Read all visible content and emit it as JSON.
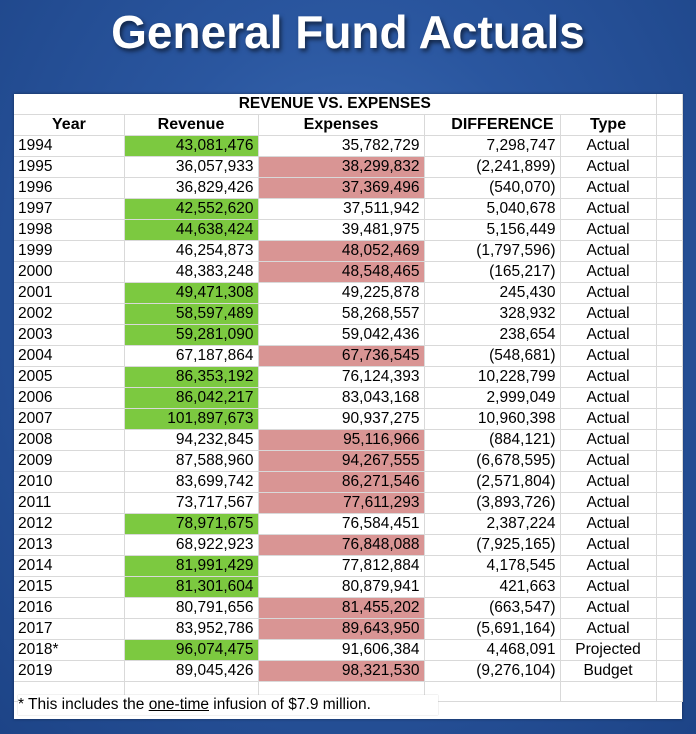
{
  "title": "General Fund Actuals",
  "table": {
    "caption": "REVENUE VS. EXPENSES",
    "headers": {
      "year": "Year",
      "revenue": "Revenue",
      "expenses": "Expenses",
      "difference": "DIFFERENCE",
      "type": "Type"
    },
    "rows": [
      {
        "year": "1994",
        "revenue": "43,081,476",
        "expenses": "35,782,729",
        "difference": "7,298,747",
        "type": "Actual"
      },
      {
        "year": "1995",
        "revenue": "36,057,933",
        "expenses": "38,299,832",
        "difference": "(2,241,899)",
        "type": "Actual"
      },
      {
        "year": "1996",
        "revenue": "36,829,426",
        "expenses": "37,369,496",
        "difference": "(540,070)",
        "type": "Actual"
      },
      {
        "year": "1997",
        "revenue": "42,552,620",
        "expenses": "37,511,942",
        "difference": "5,040,678",
        "type": "Actual"
      },
      {
        "year": "1998",
        "revenue": "44,638,424",
        "expenses": "39,481,975",
        "difference": "5,156,449",
        "type": "Actual"
      },
      {
        "year": "1999",
        "revenue": "46,254,873",
        "expenses": "48,052,469",
        "difference": "(1,797,596)",
        "type": "Actual"
      },
      {
        "year": "2000",
        "revenue": "48,383,248",
        "expenses": "48,548,465",
        "difference": "(165,217)",
        "type": "Actual"
      },
      {
        "year": "2001",
        "revenue": "49,471,308",
        "expenses": "49,225,878",
        "difference": "245,430",
        "type": "Actual"
      },
      {
        "year": "2002",
        "revenue": "58,597,489",
        "expenses": "58,268,557",
        "difference": "328,932",
        "type": "Actual"
      },
      {
        "year": "2003",
        "revenue": "59,281,090",
        "expenses": "59,042,436",
        "difference": "238,654",
        "type": "Actual"
      },
      {
        "year": "2004",
        "revenue": "67,187,864",
        "expenses": "67,736,545",
        "difference": "(548,681)",
        "type": "Actual"
      },
      {
        "year": "2005",
        "revenue": "86,353,192",
        "expenses": "76,124,393",
        "difference": "10,228,799",
        "type": "Actual"
      },
      {
        "year": "2006",
        "revenue": "86,042,217",
        "expenses": "83,043,168",
        "difference": "2,999,049",
        "type": "Actual"
      },
      {
        "year": "2007",
        "revenue": "101,897,673",
        "expenses": "90,937,275",
        "difference": "10,960,398",
        "type": "Actual"
      },
      {
        "year": "2008",
        "revenue": "94,232,845",
        "expenses": "95,116,966",
        "difference": "(884,121)",
        "type": "Actual"
      },
      {
        "year": "2009",
        "revenue": "87,588,960",
        "expenses": "94,267,555",
        "difference": "(6,678,595)",
        "type": "Actual"
      },
      {
        "year": "2010",
        "revenue": "83,699,742",
        "expenses": "86,271,546",
        "difference": "(2,571,804)",
        "type": "Actual"
      },
      {
        "year": "2011",
        "revenue": "73,717,567",
        "expenses": "77,611,293",
        "difference": "(3,893,726)",
        "type": "Actual"
      },
      {
        "year": "2012",
        "revenue": "78,971,675",
        "expenses": "76,584,451",
        "difference": "2,387,224",
        "type": "Actual"
      },
      {
        "year": "2013",
        "revenue": "68,922,923",
        "expenses": "76,848,088",
        "difference": "(7,925,165)",
        "type": "Actual"
      },
      {
        "year": "2014",
        "revenue": "81,991,429",
        "expenses": "77,812,884",
        "difference": "4,178,545",
        "type": "Actual"
      },
      {
        "year": "2015",
        "revenue": "81,301,604",
        "expenses": "80,879,941",
        "difference": "421,663",
        "type": "Actual"
      },
      {
        "year": "2016",
        "revenue": "80,791,656",
        "expenses": "81,455,202",
        "difference": "(663,547)",
        "type": "Actual"
      },
      {
        "year": "2017",
        "revenue": "83,952,786",
        "expenses": "89,643,950",
        "difference": "(5,691,164)",
        "type": "Actual"
      },
      {
        "year": "2018*",
        "revenue": "96,074,475",
        "expenses": "91,606,384",
        "difference": "4,468,091",
        "type": "Projected"
      },
      {
        "year": "2019",
        "revenue": "89,045,426",
        "expenses": "98,321,530",
        "difference": "(9,276,104)",
        "type": "Budget"
      }
    ]
  },
  "footnote": {
    "prefix": "* This includes the ",
    "underlined": "one-time",
    "suffix": " infusion of $7.9 million."
  },
  "colors": {
    "revenue_highlight": "#7cc940",
    "expense_highlight": "#d99594",
    "actual_text": "#2e74b5",
    "projected_budget_text": "#e0231c",
    "background": "#2a569f"
  }
}
